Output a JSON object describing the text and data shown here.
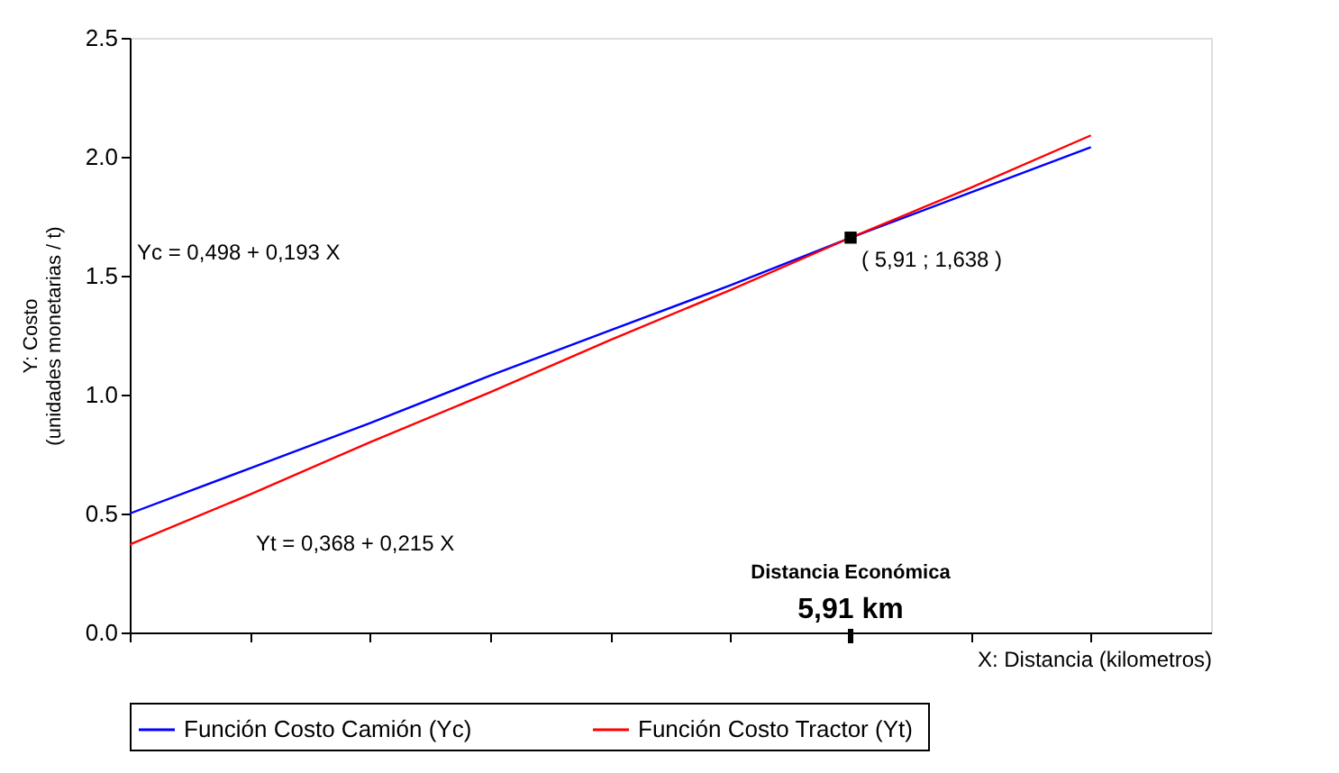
{
  "chart_data": {
    "type": "line",
    "xlabel": "X:  Distancia (kilometros)",
    "ylabel": "Y: Costo\n(unidades monetarias / t)",
    "categories": [
      null,
      null,
      null,
      null,
      null,
      null,
      null,
      null,
      null
    ],
    "ylim": [
      0,
      2.5
    ],
    "yticks": [
      {
        "value": 0,
        "label": "0.0"
      },
      {
        "value": 0.5,
        "label": "0.5"
      },
      {
        "value": 1,
        "label": "1.0"
      },
      {
        "value": 1.5,
        "label": "1.5"
      },
      {
        "value": 2,
        "label": "2.0"
      },
      {
        "value": 2.5,
        "label": "2.5"
      }
    ],
    "tick_labels": "y",
    "grid": false,
    "legend": "bottom",
    "line_style": "solid",
    "marker": "none",
    "series": [
      {
        "name": "Función Costo Camión  (Yc)",
        "color": "#0000ff",
        "values": [
          0.5,
          0.69,
          0.88,
          1.08,
          1.27,
          1.46,
          1.66,
          1.85,
          2.04
        ]
      },
      {
        "name": "Función Costo Tractor  (Yt)",
        "color": "#ff0000",
        "values": [
          0.37,
          0.58,
          0.8,
          1.01,
          1.23,
          1.44,
          1.66,
          1.87,
          2.09
        ]
      }
    ],
    "annotations": [
      "Yc = 0,498 + 0,193 X",
      "Yt = 0,368 + 0,215 X",
      "( 5,91 ; 1,638 )",
      "Distancia Económica",
      "5,91 km"
    ]
  }
}
